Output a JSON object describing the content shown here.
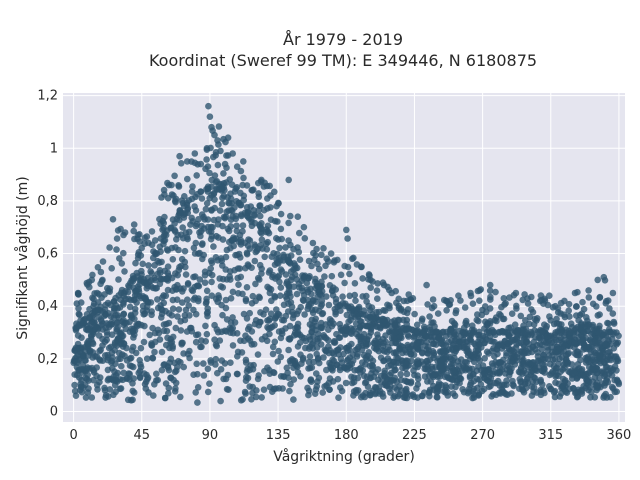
{
  "chart_data": {
    "type": "scatter",
    "title": "År 1979 - 2019",
    "subtitle": "Koordinat (Sweref 99 TM): E 349446, N 6180875",
    "xlabel": "Vågriktning (grader)",
    "ylabel": "Signifikant våghöjd (m)",
    "xlim": [
      -7,
      364
    ],
    "ylim": [
      -0.04,
      1.21
    ],
    "x_ticks": [
      0,
      45,
      90,
      135,
      180,
      225,
      270,
      315,
      360
    ],
    "x_tick_labels": [
      "0",
      "45",
      "90",
      "135",
      "180",
      "225",
      "270",
      "315",
      "360"
    ],
    "y_ticks": [
      0,
      0.2,
      0.4,
      0.6,
      0.8,
      1.0,
      1.2
    ],
    "y_tick_labels": [
      "0",
      "0,2",
      "0,4",
      "0,6",
      "0,8",
      "1",
      "1,2"
    ],
    "grid": true,
    "marker_color": "#2f5671",
    "background_color": "#e5e5ef",
    "envelope": {
      "x": [
        0,
        10,
        20,
        30,
        40,
        50,
        60,
        70,
        80,
        90,
        100,
        110,
        120,
        130,
        140,
        150,
        160,
        170,
        180,
        190,
        200,
        210,
        220,
        230,
        240,
        250,
        260,
        270,
        280,
        290,
        300,
        310,
        320,
        330,
        340,
        350,
        360
      ],
      "y_low": [
        0.05,
        0.05,
        0.05,
        0.04,
        0.04,
        0.04,
        0.04,
        0.03,
        0.03,
        0.02,
        0.03,
        0.03,
        0.04,
        0.04,
        0.04,
        0.04,
        0.04,
        0.05,
        0.05,
        0.05,
        0.05,
        0.05,
        0.05,
        0.05,
        0.05,
        0.05,
        0.05,
        0.05,
        0.05,
        0.05,
        0.05,
        0.05,
        0.05,
        0.05,
        0.05,
        0.05,
        0.05
      ],
      "y_dense_high": [
        0.3,
        0.35,
        0.4,
        0.44,
        0.5,
        0.56,
        0.65,
        0.75,
        0.82,
        0.85,
        0.84,
        0.78,
        0.7,
        0.64,
        0.58,
        0.52,
        0.48,
        0.44,
        0.4,
        0.37,
        0.35,
        0.33,
        0.31,
        0.3,
        0.3,
        0.3,
        0.3,
        0.3,
        0.3,
        0.3,
        0.3,
        0.3,
        0.3,
        0.3,
        0.3,
        0.3,
        0.3
      ],
      "y_max": [
        0.45,
        0.5,
        0.58,
        0.73,
        0.72,
        0.67,
        0.86,
        0.97,
        0.98,
        1.16,
        1.04,
        0.95,
        0.87,
        0.88,
        0.77,
        0.68,
        0.64,
        0.58,
        0.69,
        0.55,
        0.5,
        0.48,
        0.45,
        0.42,
        0.48,
        0.42,
        0.45,
        0.48,
        0.46,
        0.45,
        0.45,
        0.44,
        0.44,
        0.45,
        0.48,
        0.51,
        0.45
      ]
    },
    "outliers": [
      [
        3,
        0.45
      ],
      [
        12,
        0.5
      ],
      [
        18,
        0.53
      ],
      [
        26,
        0.73
      ],
      [
        34,
        0.68
      ],
      [
        40,
        0.71
      ],
      [
        47,
        0.66
      ],
      [
        55,
        0.6
      ],
      [
        63,
        0.86
      ],
      [
        67,
        0.8
      ],
      [
        70,
        0.97
      ],
      [
        75,
        0.95
      ],
      [
        80,
        0.98
      ],
      [
        84,
        0.94
      ],
      [
        88,
        1.0
      ],
      [
        89,
        1.16
      ],
      [
        90,
        1.12
      ],
      [
        91,
        1.08
      ],
      [
        93,
        1.05
      ],
      [
        95,
        1.03
      ],
      [
        97,
        0.99
      ],
      [
        100,
        0.94
      ],
      [
        102,
        1.04
      ],
      [
        105,
        0.98
      ],
      [
        108,
        0.93
      ],
      [
        112,
        0.95
      ],
      [
        118,
        0.84
      ],
      [
        124,
        0.88
      ],
      [
        130,
        0.82
      ],
      [
        134,
        0.78
      ],
      [
        137,
        0.75
      ],
      [
        142,
        0.88
      ],
      [
        148,
        0.74
      ],
      [
        152,
        0.7
      ],
      [
        158,
        0.64
      ],
      [
        165,
        0.62
      ],
      [
        170,
        0.6
      ],
      [
        180,
        0.69
      ],
      [
        184,
        0.58
      ],
      [
        190,
        0.55
      ],
      [
        196,
        0.5
      ],
      [
        205,
        0.48
      ],
      [
        210,
        0.45
      ],
      [
        218,
        0.42
      ],
      [
        224,
        0.43
      ],
      [
        233,
        0.48
      ],
      [
        238,
        0.4
      ],
      [
        246,
        0.42
      ],
      [
        254,
        0.44
      ],
      [
        262,
        0.45
      ],
      [
        268,
        0.46
      ],
      [
        275,
        0.48
      ],
      [
        284,
        0.43
      ],
      [
        292,
        0.45
      ],
      [
        300,
        0.41
      ],
      [
        308,
        0.42
      ],
      [
        314,
        0.44
      ],
      [
        318,
        0.4
      ],
      [
        324,
        0.42
      ],
      [
        331,
        0.45
      ],
      [
        340,
        0.46
      ],
      [
        346,
        0.5
      ],
      [
        350,
        0.51
      ],
      [
        356,
        0.45
      ]
    ]
  }
}
